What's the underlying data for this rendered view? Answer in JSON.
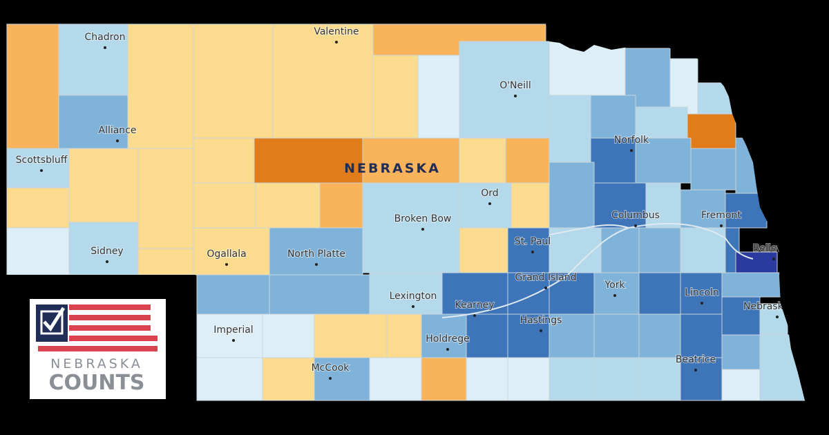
{
  "map": {
    "state_label": "NEBRASKA",
    "cities": [
      "Chadron",
      "Valentine",
      "O'Neill",
      "Alliance",
      "Norfolk",
      "Scottsbluff",
      "Ord",
      "Broken Bow",
      "Columbus",
      "Fremont",
      "Sidney",
      "Ogallala",
      "North Platte",
      "St. Paul",
      "Bellevue",
      "Grand Island",
      "York",
      "Lincoln",
      "Lexington",
      "Kearney",
      "Hastings",
      "Nebraska City",
      "Imperial",
      "Holdrege",
      "McCook",
      "Beatrice"
    ]
  },
  "logo": {
    "line1": "NEBRASKA",
    "line2": "COUNTS"
  }
}
